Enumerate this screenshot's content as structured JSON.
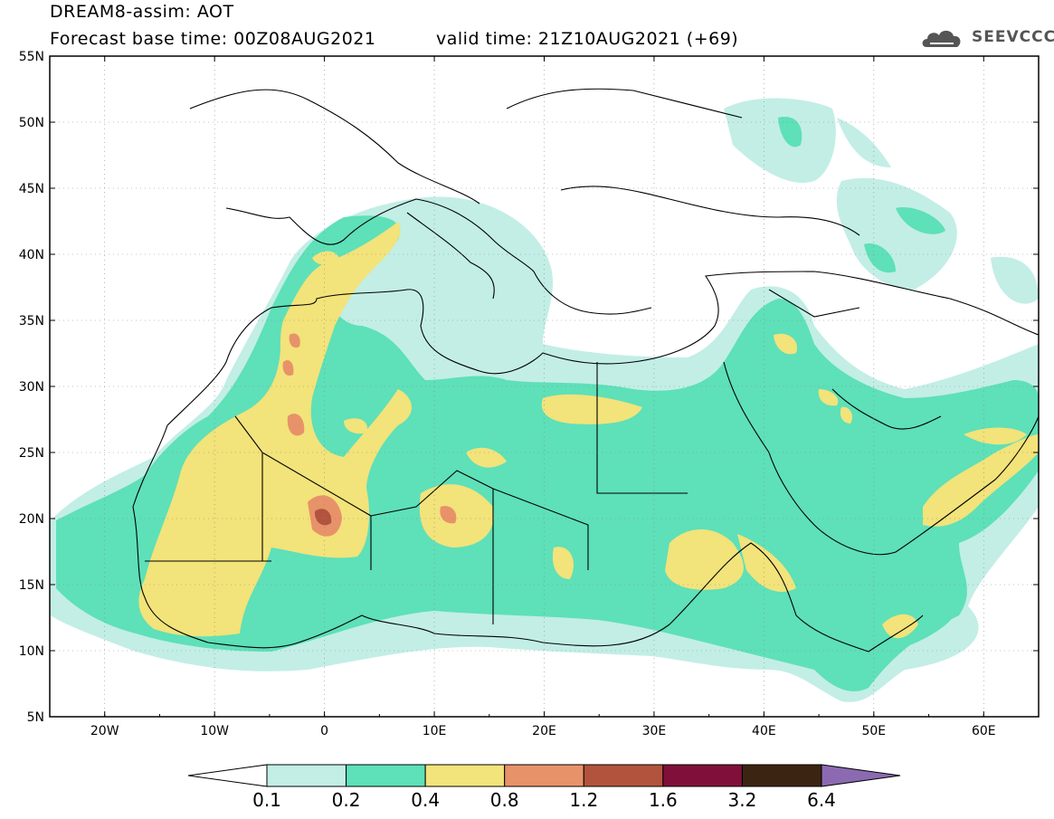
{
  "header": {
    "title": "DREAM8-assim: AOT",
    "base_time": "Forecast base time: 00Z08AUG2021",
    "valid_time": "valid time: 21Z10AUG2021 (+69)",
    "logo_text": "SEEVCCC"
  },
  "map": {
    "lat_labels": [
      "55N",
      "50N",
      "45N",
      "40N",
      "35N",
      "30N",
      "25N",
      "20N",
      "15N",
      "10N",
      "5N"
    ],
    "lon_labels": [
      "20W",
      "10W",
      "0",
      "10E",
      "20E",
      "30E",
      "40E",
      "50E",
      "60E"
    ],
    "extent": {
      "lon_min": -25,
      "lon_max": 65,
      "lat_min": 5,
      "lat_max": 55
    }
  },
  "colorbar": {
    "levels": [
      "0.1",
      "0.2",
      "0.4",
      "0.8",
      "1.2",
      "1.6",
      "3.2",
      "6.4"
    ],
    "colors": [
      "#ffffff",
      "#c2eee6",
      "#5ee0b8",
      "#f2e37a",
      "#e8926a",
      "#b2533d",
      "#80103a",
      "#3c2412",
      "#8c6ab2"
    ]
  },
  "colors": {
    "c01": "#c2eee6",
    "c02": "#5ee0b8",
    "c04": "#f2e37a",
    "c08": "#e8926a",
    "c12": "#b2533d"
  }
}
